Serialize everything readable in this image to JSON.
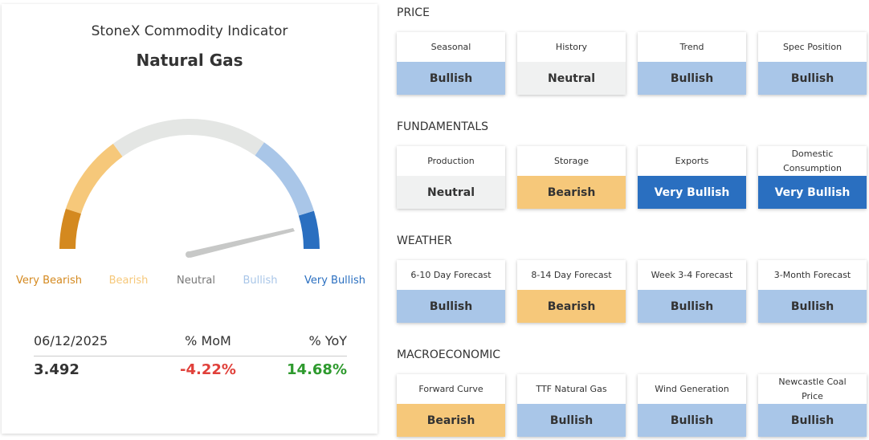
{
  "indicator": {
    "title": "StoneX Commodity Indicator",
    "commodity": "Natural Gas",
    "gauge_labels": [
      {
        "text": "Very Bearish",
        "color": "#d4891f"
      },
      {
        "text": "Bearish",
        "color": "#f6c87a"
      },
      {
        "text": "Neutral",
        "color": "#e4e6e4"
      },
      {
        "text": "Bullish",
        "color": "#a9c6e8"
      },
      {
        "text": "Very Bullish",
        "color": "#2a6fc0"
      }
    ],
    "table": {
      "header": [
        "06/12/2025",
        "% MoM",
        "% YoY"
      ],
      "row": [
        "3.492",
        "-4.22%",
        "14.68%"
      ]
    }
  },
  "sections": [
    {
      "title": "PRICE",
      "cards": [
        {
          "label": "Seasonal",
          "status": "Bullish",
          "color": "#a9c6e8"
        },
        {
          "label": "History",
          "status": "Neutral",
          "color": "#f0f1f1"
        },
        {
          "label": "Trend",
          "status": "Bullish",
          "color": "#a9c6e8"
        },
        {
          "label": "Spec Position",
          "status": "Bullish",
          "color": "#a9c6e8"
        }
      ]
    },
    {
      "title": "FUNDAMENTALS",
      "cards": [
        {
          "label": "Production",
          "status": "Neutral",
          "color": "#f0f1f1"
        },
        {
          "label": "Storage",
          "status": "Bearish",
          "color": "#f6c87a"
        },
        {
          "label": "Exports",
          "status": "Very Bullish",
          "color": "#2a6fc0"
        },
        {
          "label": "Domestic Consumption",
          "status": "Very Bullish",
          "color": "#2a6fc0"
        }
      ]
    },
    {
      "title": "WEATHER",
      "cards": [
        {
          "label": "6-10 Day Forecast",
          "status": "Bullish",
          "color": "#a9c6e8"
        },
        {
          "label": "8-14 Day Forecast",
          "status": "Bearish",
          "color": "#f6c87a"
        },
        {
          "label": "Week 3-4 Forecast",
          "status": "Bullish",
          "color": "#a9c6e8"
        },
        {
          "label": "3-Month Forecast",
          "status": "Bullish",
          "color": "#a9c6e8"
        }
      ]
    },
    {
      "title": "MACROECONOMIC",
      "cards": [
        {
          "label": "Forward Curve",
          "status": "Bearish",
          "color": "#f6c87a"
        },
        {
          "label": "TTF Natural Gas",
          "status": "Bullish",
          "color": "#a9c6e8"
        },
        {
          "label": "Wind Generation",
          "status": "Bullish",
          "color": "#a9c6e8"
        },
        {
          "label": "Newcastle Coal Price",
          "status": "Bullish",
          "color": "#a9c6e8"
        }
      ]
    }
  ]
}
